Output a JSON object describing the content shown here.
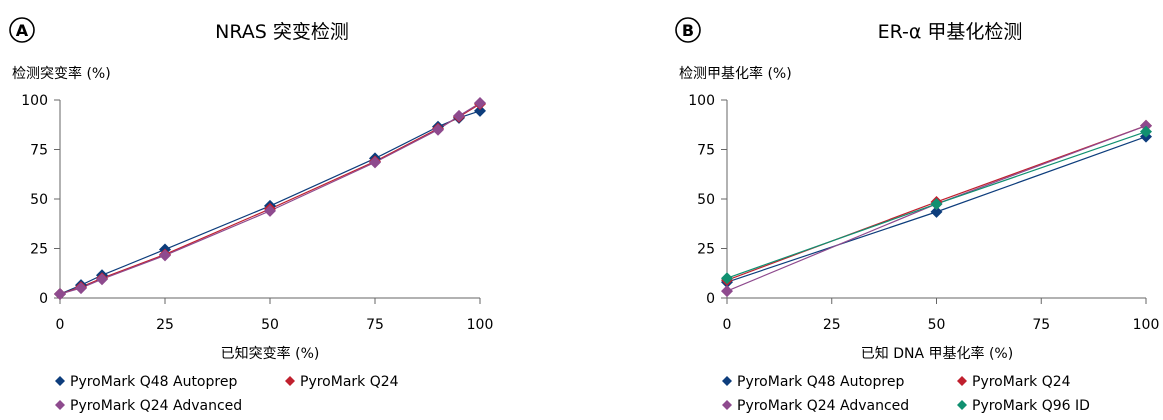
{
  "colors": {
    "q48": "#0d3d7c",
    "q24": "#c0202e",
    "q24adv": "#8e4a8e",
    "q96": "#109070",
    "axis": "#666666"
  },
  "chart_data": [
    {
      "type": "line",
      "panel_label": "A",
      "title": "NRAS 突变检测",
      "ylabel": "检测突变率 (%)",
      "xlabel": "已知突变率 (%)",
      "xlim": [
        0,
        100
      ],
      "ylim": [
        0,
        100
      ],
      "xticks": [
        "0",
        "25",
        "50",
        "75",
        "100"
      ],
      "yticks": [
        "0",
        "25",
        "50",
        "75",
        "100"
      ],
      "grid": false,
      "legend_position": "bottom",
      "series": [
        {
          "name": "PyroMark Q48 Autoprep",
          "color": "#0d3d7c",
          "x": [
            0,
            5,
            10,
            25,
            50,
            75,
            90,
            95,
            100
          ],
          "y": [
            2,
            6.5,
            11.5,
            24.5,
            46.5,
            70.5,
            86.5,
            91,
            94.5
          ]
        },
        {
          "name": "PyroMark Q24",
          "color": "#c0202e",
          "x": [
            0,
            5,
            10,
            25,
            50,
            75,
            90,
            95,
            100
          ],
          "y": [
            2,
            5.5,
            10,
            22,
            45,
            69,
            85.5,
            91.5,
            98
          ]
        },
        {
          "name": "PyroMark Q24 Advanced",
          "color": "#8e4a8e",
          "x": [
            0,
            5,
            10,
            25,
            50,
            75,
            90,
            95,
            100
          ],
          "y": [
            2,
            5,
            9.5,
            21.5,
            44,
            68.5,
            85,
            92,
            98.5
          ]
        }
      ]
    },
    {
      "type": "line",
      "panel_label": "B",
      "title": "ER-α 甲基化检测",
      "ylabel": "检测甲基化率 (%)",
      "xlabel": "已知 DNA 甲基化率 (%)",
      "xlim": [
        0,
        100
      ],
      "ylim": [
        0,
        100
      ],
      "xticks": [
        "0",
        "25",
        "50",
        "75",
        "100"
      ],
      "yticks": [
        "0",
        "25",
        "50",
        "75",
        "100"
      ],
      "grid": false,
      "legend_position": "bottom",
      "series": [
        {
          "name": "PyroMark Q48 Autoprep",
          "color": "#0d3d7c",
          "x": [
            0,
            50,
            100
          ],
          "y": [
            8,
            43.5,
            81.5
          ]
        },
        {
          "name": "PyroMark Q24",
          "color": "#c0202e",
          "x": [
            0,
            50,
            100
          ],
          "y": [
            9,
            48.5,
            87
          ]
        },
        {
          "name": "PyroMark Q24 Advanced",
          "color": "#8e4a8e",
          "x": [
            0,
            50,
            100
          ],
          "y": [
            3.5,
            47.5,
            87
          ]
        },
        {
          "name": "PyroMark Q96 ID",
          "color": "#109070",
          "x": [
            0,
            50,
            100
          ],
          "y": [
            10,
            47.5,
            84
          ]
        }
      ]
    }
  ]
}
